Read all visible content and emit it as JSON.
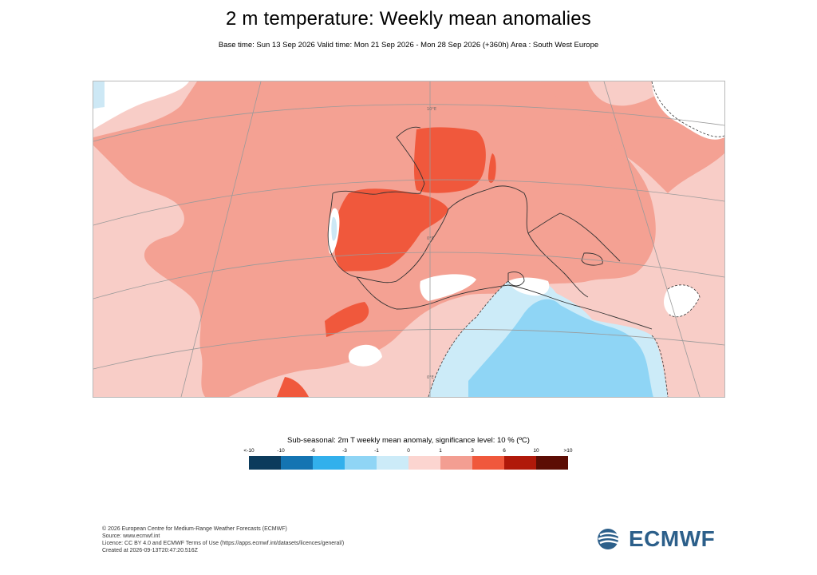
{
  "header": {
    "title": "2 m temperature: Weekly mean anomalies",
    "subtitle": "Base time: Sun 13 Sep 2026 Valid time: Mon 21 Sep 2026 - Mon 28 Sep 2026 (+360h) Area : South West Europe"
  },
  "map": {
    "region": "South West Europe",
    "gridline_labels": [
      "10°E",
      "0°E",
      "0°E",
      "0°E"
    ],
    "land_border_color": "#333333",
    "significance_contour_style": "dashed"
  },
  "legend": {
    "title": "Sub-seasonal: 2m T weekly mean anomaly, significance level: 10 % (ºC)",
    "ticks": [
      "<-10",
      "-10",
      "-6",
      "-3",
      "-1",
      "0",
      "1",
      "3",
      "6",
      "10",
      ">10"
    ],
    "colors": [
      "#0c3b5c",
      "#1474b2",
      "#32b0ec",
      "#8fd5f5",
      "#ccebf8",
      "#fcd5d0",
      "#f39e92",
      "#f0583c",
      "#b0190a",
      "#5c0d04"
    ]
  },
  "footer": {
    "lines": [
      "© 2026 European Centre for Medium-Range Weather Forecasts (ECMWF)",
      "Source: www.ecmwf.int",
      "Licence: CC BY 4.0 and ECMWF Terms of Use (https://apps.ecmwf.int/datasets/licences/general/)",
      "Created at 2026-09-13T20:47:20.516Z"
    ]
  },
  "logo": {
    "text": "ECMWF",
    "color": "#2c5f8a"
  }
}
